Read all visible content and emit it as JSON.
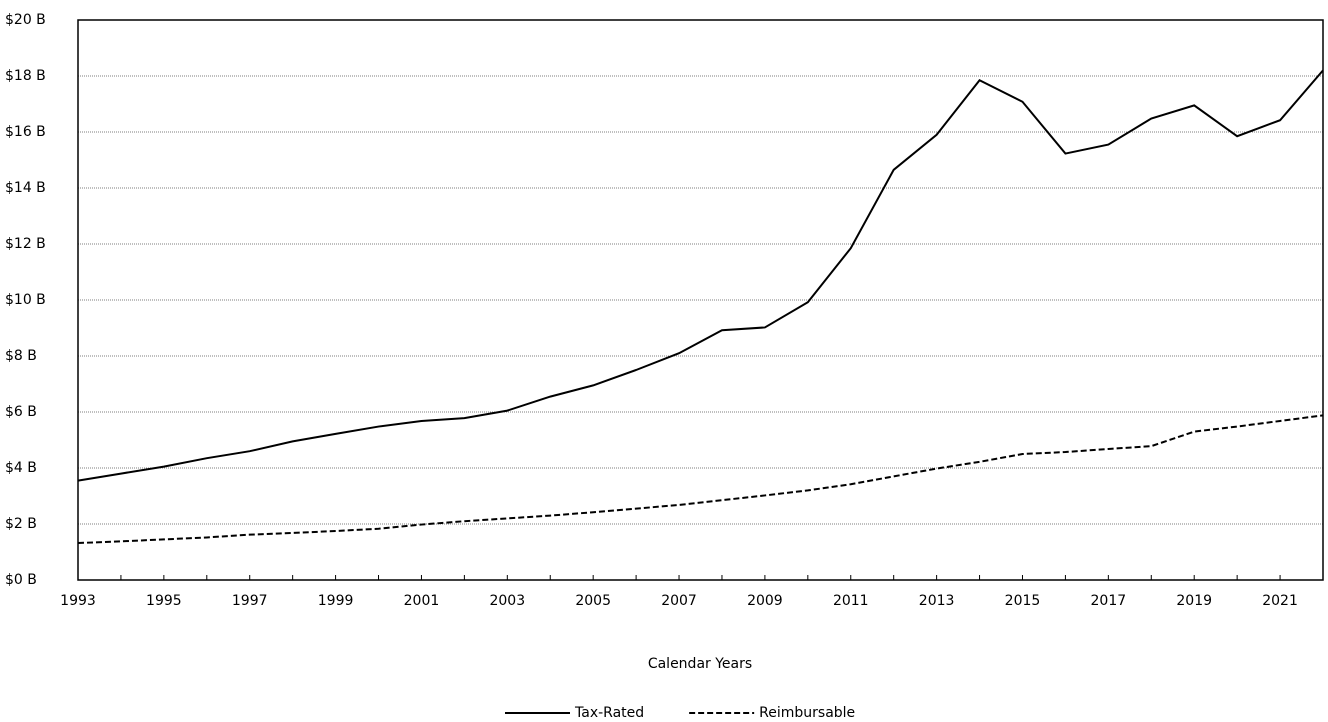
{
  "chart_data": {
    "type": "line",
    "x_label": "Calendar Years",
    "x": [
      1993,
      1994,
      1995,
      1996,
      1997,
      1998,
      1999,
      2000,
      2001,
      2002,
      2003,
      2004,
      2005,
      2006,
      2007,
      2008,
      2009,
      2010,
      2011,
      2012,
      2013,
      2014,
      2015,
      2016,
      2017,
      2018,
      2019,
      2020,
      2021,
      2022
    ],
    "series": [
      {
        "name": "Tax-Rated",
        "color": "#000000",
        "dash": "solid",
        "values": [
          3.55,
          3.8,
          4.05,
          4.35,
          4.6,
          4.95,
          5.22,
          5.48,
          5.68,
          5.78,
          6.05,
          6.55,
          6.95,
          7.5,
          8.1,
          8.92,
          9.02,
          9.92,
          11.85,
          14.65,
          15.9,
          17.85,
          17.08,
          15.23,
          15.55,
          16.48,
          16.95,
          15.85,
          16.42,
          18.2
        ]
      },
      {
        "name": "Reimbursable",
        "color": "#000000",
        "dash": "dashed",
        "values": [
          1.32,
          1.38,
          1.45,
          1.52,
          1.62,
          1.68,
          1.75,
          1.83,
          1.98,
          2.1,
          2.2,
          2.3,
          2.42,
          2.55,
          2.68,
          2.85,
          3.02,
          3.2,
          3.42,
          3.7,
          3.98,
          4.22,
          4.5,
          4.57,
          4.68,
          4.78,
          5.3,
          5.48,
          5.68,
          5.88
        ]
      }
    ],
    "xlim": [
      1993,
      2022
    ],
    "xticks": [
      1993,
      1995,
      1997,
      1999,
      2001,
      2003,
      2005,
      2007,
      2009,
      2011,
      2013,
      2015,
      2017,
      2019,
      2021
    ],
    "ylim": [
      0,
      20
    ],
    "yticks": [
      {
        "value": 0,
        "label": "$0 B"
      },
      {
        "value": 2,
        "label": "$2 B"
      },
      {
        "value": 4,
        "label": "$4 B"
      },
      {
        "value": 6,
        "label": "$6 B"
      },
      {
        "value": 8,
        "label": "$8 B"
      },
      {
        "value": 10,
        "label": "$10 B"
      },
      {
        "value": 12,
        "label": "$12 B"
      },
      {
        "value": 14,
        "label": "$14 B"
      },
      {
        "value": 16,
        "label": "$16 B"
      },
      {
        "value": 18,
        "label": "$18 B"
      },
      {
        "value": 20,
        "label": "$20 B"
      }
    ],
    "grid": true,
    "legend": "bottom"
  }
}
